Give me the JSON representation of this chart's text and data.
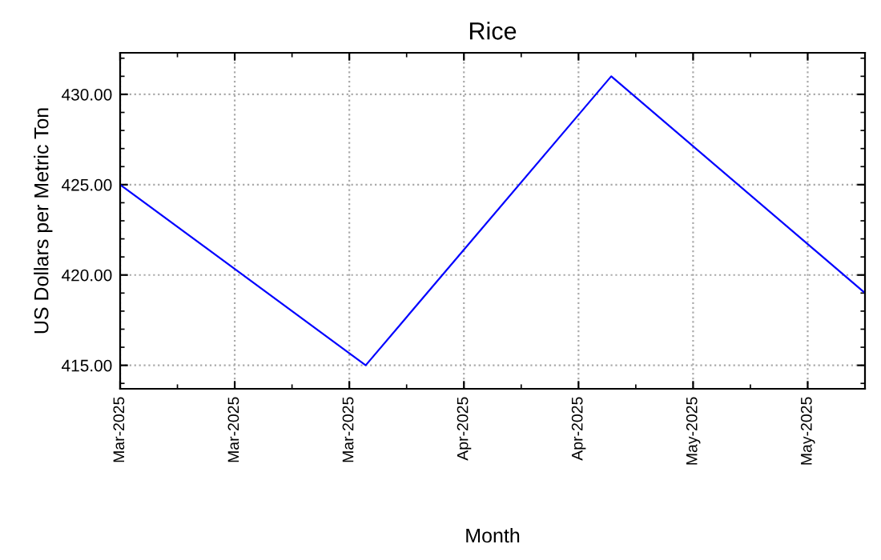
{
  "chart_data": {
    "type": "line",
    "title": "Rice",
    "xlabel": "Month",
    "ylabel": "US Dollars per Metric Ton",
    "x": [
      "2025-03-01",
      "2025-03-31",
      "2025-04-30",
      "2025-05-31"
    ],
    "series": [
      {
        "color": "#0000ff",
        "values": [
          425.0,
          415.0,
          431.0,
          419.0
        ]
      }
    ],
    "xlim": [
      "2025-03-01",
      "2025-05-31"
    ],
    "xticks": [
      {
        "value": "2025-03-01",
        "label": "Mar-2025"
      },
      {
        "value": "2025-03-15",
        "label": "Mar-2025"
      },
      {
        "value": "2025-03-29",
        "label": "Mar-2025"
      },
      {
        "value": "2025-04-12",
        "label": "Apr-2025"
      },
      {
        "value": "2025-04-26",
        "label": "Apr-2025"
      },
      {
        "value": "2025-05-10",
        "label": "May-2025"
      },
      {
        "value": "2025-05-24",
        "label": "May-2025"
      }
    ],
    "ylim": [
      413.7,
      432.3
    ],
    "yticks": [
      {
        "value": 415,
        "label": "415.00"
      },
      {
        "value": 420,
        "label": "420.00"
      },
      {
        "value": 425,
        "label": "425.00"
      },
      {
        "value": 430,
        "label": "430.00"
      }
    ],
    "grid": true,
    "legend": false,
    "marker": "none",
    "line_style": "solid"
  }
}
